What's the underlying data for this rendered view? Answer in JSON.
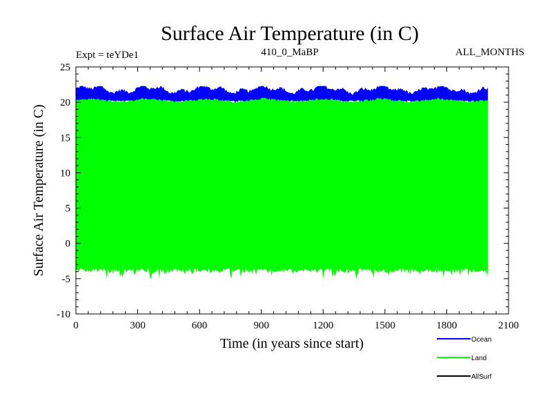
{
  "chart_data": {
    "type": "area",
    "title": "Surface Air Temperature (in C)",
    "subtitle_left": "Expt = teYDe1",
    "subtitle_center": "410_0_MaBP",
    "subtitle_right": "ALL_MONTHS",
    "xlabel": "Time (in years since start)",
    "ylabel": "Surface Air Temperature (in C)",
    "xlim": [
      0,
      2100
    ],
    "ylim": [
      -10,
      25
    ],
    "x_ticks": [
      0,
      300,
      600,
      900,
      1200,
      1500,
      1800,
      2100
    ],
    "x_tick_labels": [
      "0",
      "300",
      "600",
      "900",
      "1200",
      "1500",
      "1800",
      "2100"
    ],
    "y_ticks": [
      -10,
      -5,
      0,
      5,
      10,
      15,
      20,
      25
    ],
    "y_tick_labels": [
      "-10",
      "-5",
      "0",
      "5",
      "10",
      "15",
      "20",
      "25"
    ],
    "x_range_data": [
      0,
      2000
    ],
    "series": [
      {
        "name": "Ocean",
        "color": "#0000ff",
        "band": {
          "low": 20.1,
          "high": 21.6,
          "peak_high": 22.3
        }
      },
      {
        "name": "Land",
        "color": "#00ff00",
        "band": {
          "low": -3.5,
          "high": 20.1,
          "min_low": -5.3
        }
      },
      {
        "name": "AllSurf",
        "color": "#000000"
      }
    ],
    "legend_position": "bottom-right"
  }
}
